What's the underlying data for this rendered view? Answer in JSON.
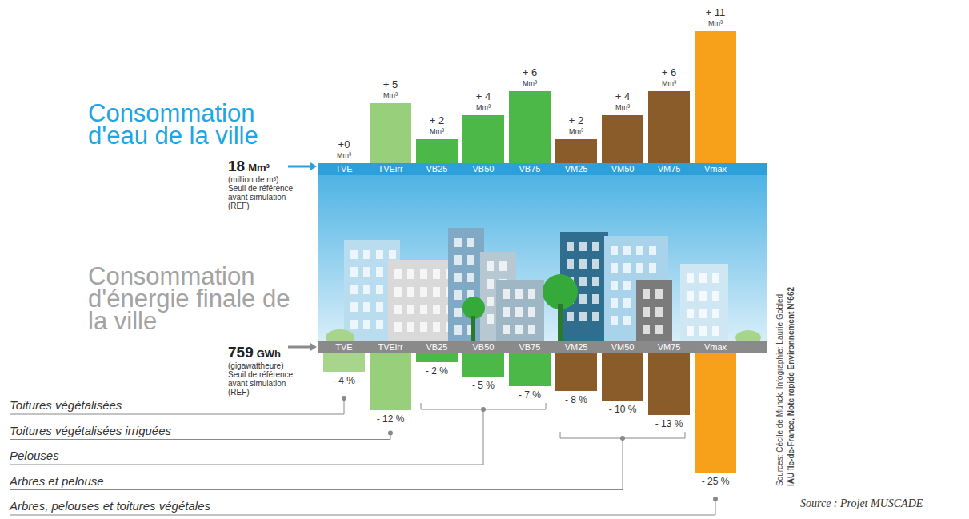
{
  "chart_data": [
    {
      "type": "bar",
      "title": "Consommation d'eau de la ville",
      "reference": {
        "value": 18,
        "unit": "Mm³",
        "note": [
          "(million de m³)",
          "Seuil de référence",
          "avant simulation",
          "(REF)"
        ]
      },
      "categories": [
        "TVE",
        "TVEirr",
        "VB25",
        "VB50",
        "VB75",
        "VM25",
        "VM50",
        "VM75",
        "Vmax"
      ],
      "values": [
        0,
        5,
        2,
        4,
        6,
        2,
        4,
        6,
        11
      ],
      "value_labels": [
        "+0\nMm³",
        "+ 5\nMm³",
        "+ 2\nMm³",
        "+ 4\nMm³",
        "+ 6\nMm³",
        "+ 2\nMm³",
        "+ 4\nMm³",
        "+ 6\nMm³",
        "+ 11\nMm³"
      ],
      "colors": [
        "#a8d58c",
        "#97cf7a",
        "#4cb848",
        "#4cb848",
        "#4cb848",
        "#8a5c2a",
        "#8a5c2a",
        "#8a5c2a",
        "#f7a11a"
      ],
      "ylim": [
        0,
        11
      ],
      "data_labels": true,
      "tick_labels": "x"
    },
    {
      "type": "bar",
      "title": "Consommation d'énergie finale de la ville",
      "reference": {
        "value": 759,
        "unit": "GWh",
        "note": [
          "(gigawattheure)",
          "Seuil de référence",
          "avant simulation",
          "(REF)"
        ]
      },
      "categories": [
        "TVE",
        "TVEirr",
        "VB25",
        "VB50",
        "VB75",
        "VM25",
        "VM50",
        "VM75",
        "Vmax"
      ],
      "values": [
        -4,
        -12,
        -2,
        -5,
        -7,
        -8,
        -10,
        -13,
        -25
      ],
      "value_labels": [
        "- 4 %",
        "- 12 %",
        "- 2 %",
        "- 5 %",
        "- 7 %",
        "- 8 %",
        "- 10 %",
        "- 13 %",
        "- 25 %"
      ],
      "colors": [
        "#a8d58c",
        "#97cf7a",
        "#4cb848",
        "#4cb848",
        "#4cb848",
        "#8a5c2a",
        "#8a5c2a",
        "#8a5c2a",
        "#f7a11a"
      ],
      "ylim": [
        -25,
        0
      ],
      "data_labels": true,
      "tick_labels": "x",
      "annotations": [
        {
          "text": "Toitures végétalisées",
          "categories": [
            "TVE"
          ]
        },
        {
          "text": "Toitures végétalisées irriguées",
          "categories": [
            "TVEirr"
          ]
        },
        {
          "text": "Pelouses",
          "categories": [
            "VB25",
            "VB50",
            "VB75"
          ]
        },
        {
          "text": "Arbres et pelouse",
          "categories": [
            "VM25",
            "VM50",
            "VM75"
          ]
        },
        {
          "text": "Arbres, pelouses et toitures végétales",
          "categories": [
            "Vmax"
          ]
        }
      ]
    }
  ],
  "sources": [
    "Sources: Cécile de Munck. Infographie: Laurie Gobled",
    "IAU île-de-France, Note rapide Environnement N°662",
    "Source : Projet MUSCADE"
  ]
}
